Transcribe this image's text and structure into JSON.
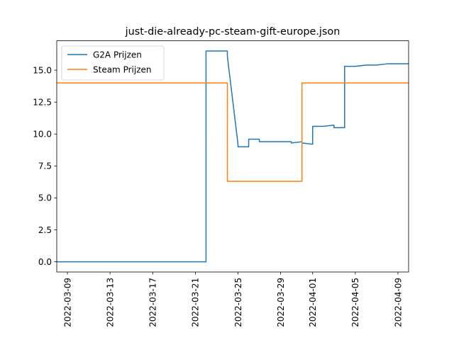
{
  "chart_data": {
    "type": "line",
    "title": "just-die-already-pc-steam-gift-europe.json",
    "xlabel": "",
    "ylabel": "",
    "x_type": "date",
    "xlim": [
      "2022-03-08",
      "2022-04-10"
    ],
    "ylim": [
      -0.8,
      17.3
    ],
    "x_ticks": [
      "2022-03-09",
      "2022-03-13",
      "2022-03-17",
      "2022-03-21",
      "2022-03-25",
      "2022-03-29",
      "2022-04-01",
      "2022-04-05",
      "2022-04-09"
    ],
    "y_ticks": [
      0.0,
      2.5,
      5.0,
      7.5,
      10.0,
      12.5,
      15.0
    ],
    "y_tick_labels": [
      "0.0",
      "2.5",
      "5.0",
      "7.5",
      "10.0",
      "12.5",
      "15.0"
    ],
    "legend_position": "upper left",
    "grid": false,
    "series": [
      {
        "name": "G2A Prijzen",
        "color": "#1f77b4",
        "points": [
          [
            "2022-03-08",
            0.0
          ],
          [
            "2022-03-12",
            0.0
          ],
          [
            "2022-03-16",
            0.0
          ],
          [
            "2022-03-20",
            0.0
          ],
          [
            "2022-03-22",
            0.0
          ],
          [
            "2022-03-22",
            16.5
          ],
          [
            "2022-03-23",
            16.5
          ],
          [
            "2022-03-24",
            16.5
          ],
          [
            "2022-03-24",
            16.1
          ],
          [
            "2022-03-25",
            9.2
          ],
          [
            "2022-03-25",
            9.0
          ],
          [
            "2022-03-26",
            9.0
          ],
          [
            "2022-03-26",
            9.6
          ],
          [
            "2022-03-27",
            9.6
          ],
          [
            "2022-03-27",
            9.4
          ],
          [
            "2022-03-29",
            9.4
          ],
          [
            "2022-03-30",
            9.4
          ],
          [
            "2022-03-30",
            9.3
          ],
          [
            "2022-03-31",
            9.4
          ],
          [
            "2022-03-31",
            9.3
          ],
          [
            "2022-04-01",
            9.2
          ],
          [
            "2022-04-01",
            10.6
          ],
          [
            "2022-04-02",
            10.6
          ],
          [
            "2022-04-03",
            10.7
          ],
          [
            "2022-04-03",
            10.5
          ],
          [
            "2022-04-04",
            10.5
          ],
          [
            "2022-04-04",
            15.3
          ],
          [
            "2022-04-05",
            15.3
          ],
          [
            "2022-04-06",
            15.4
          ],
          [
            "2022-04-07",
            15.4
          ],
          [
            "2022-04-08",
            15.5
          ],
          [
            "2022-04-09",
            15.5
          ],
          [
            "2022-04-10",
            15.5
          ]
        ]
      },
      {
        "name": "Steam Prijzen",
        "color": "#ff7f0e",
        "points": [
          [
            "2022-03-08",
            14.0
          ],
          [
            "2022-03-16",
            14.0
          ],
          [
            "2022-03-24",
            14.0
          ],
          [
            "2022-03-24",
            6.3
          ],
          [
            "2022-03-31",
            6.3
          ],
          [
            "2022-03-31",
            14.0
          ],
          [
            "2022-04-05",
            14.0
          ],
          [
            "2022-04-10",
            14.0
          ]
        ]
      }
    ]
  }
}
